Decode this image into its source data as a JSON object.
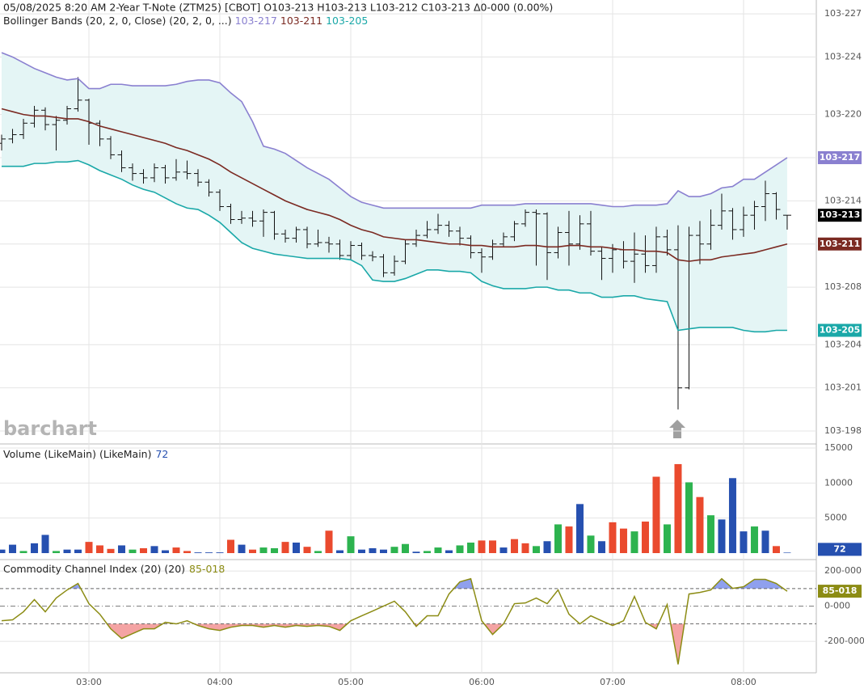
{
  "chart_data": [
    {
      "type": "ohlc",
      "title": "05/08/2025  8:20 AM 2-Year T-Note (ZTM25) [CBOT] O103-213 H103-213 L103-212 C103-213 Δ0-000 (0.00%)",
      "watermark": "barchart",
      "color": "#111111",
      "close_label": "103-213",
      "open": [
        218.0,
        218.3,
        218.6,
        219.4,
        220.3,
        219.3,
        219.6,
        220.4,
        221.0,
        219.4,
        218.3,
        217.2,
        216.3,
        215.9,
        215.6,
        216.3,
        215.6,
        216.0,
        215.9,
        215.3,
        214.6,
        213.6,
        212.7,
        212.8,
        212.6,
        213.2,
        211.7,
        211.4,
        212.0,
        211.0,
        211.1,
        211.0,
        210.2,
        210.9,
        210.2,
        210.1,
        209.0,
        209.8,
        211.0,
        211.6,
        212.0,
        212.3,
        211.9,
        211.4,
        210.4,
        210.1,
        211.0,
        211.5,
        212.4,
        213.2,
        213.1,
        210.4,
        211.8,
        211.0,
        212.4,
        210.5,
        210.0,
        210.6,
        209.8,
        210.3,
        209.5,
        211.5,
        210.6,
        201.0,
        211.6,
        211.0,
        212.3,
        213.3,
        212.0,
        213.0,
        213.6,
        214.5,
        213.0
      ],
      "high": [
        218.6,
        219.0,
        219.7,
        220.6,
        220.5,
        219.9,
        220.6,
        222.6,
        221.1,
        219.6,
        218.5,
        217.5,
        216.6,
        216.2,
        216.6,
        216.5,
        216.9,
        216.8,
        216.2,
        215.5,
        214.8,
        213.8,
        213.3,
        213.3,
        213.4,
        213.3,
        212.0,
        212.2,
        212.2,
        212.0,
        211.5,
        211.3,
        211.2,
        211.1,
        210.5,
        210.3,
        210.2,
        211.3,
        212.0,
        212.6,
        213.1,
        212.6,
        212.2,
        211.6,
        210.7,
        211.3,
        211.8,
        212.6,
        213.4,
        213.4,
        213.2,
        212.2,
        213.3,
        213.0,
        213.3,
        210.8,
        211.0,
        211.2,
        211.8,
        211.6,
        212.2,
        212.0,
        212.3,
        212.2,
        212.6,
        213.4,
        214.5,
        213.5,
        213.6,
        214.0,
        215.4,
        214.6,
        213.0
      ],
      "low": [
        217.5,
        218.0,
        218.3,
        219.1,
        218.9,
        217.5,
        219.3,
        220.2,
        217.9,
        217.8,
        216.9,
        216.0,
        215.4,
        215.2,
        215.3,
        215.2,
        215.4,
        215.5,
        215.0,
        214.3,
        213.3,
        212.4,
        212.4,
        212.2,
        211.5,
        211.3,
        211.1,
        211.1,
        210.7,
        210.8,
        210.4,
        209.9,
        209.9,
        209.9,
        209.8,
        208.7,
        208.8,
        209.6,
        210.8,
        211.4,
        211.7,
        211.5,
        210.9,
        210.0,
        209.0,
        209.9,
        210.8,
        211.2,
        212.2,
        209.5,
        208.5,
        210.0,
        209.5,
        210.6,
        210.2,
        208.5,
        209.0,
        209.3,
        208.3,
        209.0,
        209.0,
        210.2,
        199.5,
        200.9,
        209.6,
        210.6,
        212.0,
        211.3,
        211.5,
        212.0,
        212.6,
        212.7,
        212.0
      ],
      "close": [
        218.3,
        218.6,
        219.4,
        220.3,
        219.3,
        219.6,
        220.4,
        221.0,
        219.4,
        218.3,
        217.2,
        216.3,
        215.9,
        215.6,
        216.3,
        215.6,
        216.0,
        215.9,
        215.3,
        214.6,
        213.6,
        212.7,
        212.8,
        212.6,
        213.2,
        211.7,
        211.4,
        212.0,
        211.0,
        211.1,
        211.0,
        210.2,
        210.9,
        210.2,
        210.1,
        209.0,
        209.8,
        211.0,
        211.6,
        212.0,
        212.3,
        211.9,
        211.4,
        210.4,
        210.1,
        211.0,
        211.5,
        212.4,
        213.2,
        213.1,
        210.4,
        211.8,
        211.0,
        212.4,
        210.5,
        210.0,
        210.6,
        209.8,
        210.3,
        209.5,
        211.5,
        210.6,
        201.0,
        211.6,
        211.0,
        212.3,
        213.3,
        212.0,
        213.0,
        213.6,
        214.5,
        213.4,
        213.0
      ],
      "bands": {
        "label": "Bollinger Bands (20, 2, 0, Close)  (20, 2, 0, ...)",
        "fill": "#e4f5f5",
        "series": [
          {
            "name": "103-217",
            "color": "#8a80d0",
            "values": [
              224.3,
              224.0,
              223.6,
              223.2,
              222.9,
              222.6,
              222.4,
              222.5,
              221.8,
              221.8,
              222.1,
              222.1,
              222.0,
              222.0,
              222.0,
              222.0,
              222.1,
              222.3,
              222.4,
              222.4,
              222.2,
              221.5,
              220.9,
              219.5,
              217.8,
              217.6,
              217.3,
              216.8,
              216.3,
              215.9,
              215.5,
              214.9,
              214.3,
              213.9,
              213.7,
              213.5,
              213.5,
              213.5,
              213.5,
              213.5,
              213.5,
              213.5,
              213.5,
              213.5,
              213.7,
              213.7,
              213.7,
              213.7,
              213.8,
              213.8,
              213.8,
              213.8,
              213.8,
              213.8,
              213.8,
              213.7,
              213.6,
              213.6,
              213.7,
              213.7,
              213.7,
              213.8,
              214.7,
              214.3,
              214.3,
              214.5,
              214.9,
              215.0,
              215.5,
              215.5,
              216.0,
              216.5,
              217.0
            ]
          },
          {
            "name": "103-211",
            "color": "#7b2a22",
            "values": [
              220.4,
              220.2,
              220.0,
              219.9,
              219.9,
              219.8,
              219.7,
              219.7,
              219.5,
              219.2,
              219.0,
              218.8,
              218.6,
              218.4,
              218.2,
              218.0,
              217.7,
              217.5,
              217.2,
              216.9,
              216.5,
              216.0,
              215.6,
              215.2,
              214.8,
              214.4,
              214.0,
              213.7,
              213.4,
              213.2,
              213.0,
              212.7,
              212.3,
              212.0,
              211.8,
              211.5,
              211.4,
              211.3,
              211.3,
              211.2,
              211.1,
              211.0,
              211.0,
              210.9,
              210.9,
              210.8,
              210.8,
              210.8,
              210.9,
              210.9,
              210.8,
              210.8,
              210.9,
              210.9,
              210.8,
              210.8,
              210.7,
              210.6,
              210.6,
              210.5,
              210.5,
              210.4,
              209.9,
              209.8,
              209.9,
              209.9,
              210.1,
              210.2,
              210.3,
              210.4,
              210.6,
              210.8,
              211.0
            ]
          },
          {
            "name": "103-205",
            "color": "#1aa8a8",
            "values": [
              216.4,
              216.4,
              216.4,
              216.6,
              216.6,
              216.7,
              216.7,
              216.8,
              216.5,
              216.1,
              215.8,
              215.5,
              215.1,
              214.8,
              214.6,
              214.2,
              213.8,
              213.5,
              213.4,
              213.0,
              212.5,
              211.8,
              211.1,
              210.7,
              210.5,
              210.3,
              210.2,
              210.1,
              210.0,
              210.0,
              210.0,
              210.0,
              209.9,
              209.5,
              208.5,
              208.4,
              208.4,
              208.6,
              208.9,
              209.2,
              209.2,
              209.1,
              209.1,
              209.0,
              208.4,
              208.1,
              207.9,
              207.9,
              207.9,
              208.0,
              208.0,
              207.8,
              207.8,
              207.6,
              207.6,
              207.3,
              207.3,
              207.4,
              207.4,
              207.2,
              207.1,
              207.0,
              205.0,
              205.1,
              205.2,
              205.2,
              205.2,
              205.2,
              205.0,
              204.9,
              204.9,
              205.0,
              205.0
            ]
          }
        ]
      },
      "ylim": [
        197.16,
        227.96
      ],
      "yticks": [
        {
          "value": 227,
          "label": "103-227"
        },
        {
          "value": 224,
          "label": "103-224"
        },
        {
          "value": 220,
          "label": "103-220"
        },
        {
          "value": 217,
          "label": "103-217"
        },
        {
          "value": 214,
          "label": "103-214"
        },
        {
          "value": 211,
          "label": "103-211"
        },
        {
          "value": 208,
          "label": "103-208"
        },
        {
          "value": 204,
          "label": "103-204"
        },
        {
          "value": 201,
          "label": "103-201"
        },
        {
          "value": 198,
          "label": "103-198"
        }
      ],
      "grid": true
    },
    {
      "type": "bar",
      "title": "Volume (LikeMain)  (LikeMain)",
      "last_color": "#2650b0",
      "values": [
        500,
        1200,
        300,
        1400,
        2600,
        300,
        500,
        500,
        1600,
        1100,
        600,
        1100,
        500,
        700,
        1000,
        400,
        800,
        300,
        100,
        100,
        100,
        1900,
        1200,
        500,
        800,
        700,
        1600,
        1500,
        900,
        300,
        3200,
        400,
        2400,
        500,
        700,
        500,
        900,
        1300,
        200,
        300,
        800,
        400,
        1100,
        1500,
        1800,
        1800,
        800,
        2000,
        1400,
        1000,
        1700,
        4100,
        3800,
        7000,
        2500,
        1700,
        4400,
        3500,
        3100,
        4500,
        10900,
        4100,
        12700,
        10100,
        8000,
        5400,
        4800,
        10700,
        3100,
        3800,
        3200,
        1000,
        72
      ],
      "colors": [
        "#2650b0",
        "#2650b0",
        "#2db34f",
        "#2650b0",
        "#2650b0",
        "#2db34f",
        "#2650b0",
        "#2650b0",
        "#ea4a2e",
        "#ea4a2e",
        "#ea4a2e",
        "#2650b0",
        "#2db34f",
        "#ea4a2e",
        "#2650b0",
        "#2650b0",
        "#ea4a2e",
        "#ea4a2e",
        "#2650b0",
        "#2650b0",
        "#2650b0",
        "#ea4a2e",
        "#2650b0",
        "#ea4a2e",
        "#2db34f",
        "#2db34f",
        "#ea4a2e",
        "#2650b0",
        "#ea4a2e",
        "#2db34f",
        "#ea4a2e",
        "#2650b0",
        "#2db34f",
        "#2650b0",
        "#2650b0",
        "#2650b0",
        "#2db34f",
        "#2db34f",
        "#2650b0",
        "#2db34f",
        "#2db34f",
        "#2650b0",
        "#2db34f",
        "#2db34f",
        "#ea4a2e",
        "#ea4a2e",
        "#2650b0",
        "#ea4a2e",
        "#ea4a2e",
        "#2db34f",
        "#2650b0",
        "#2db34f",
        "#ea4a2e",
        "#2650b0",
        "#2db34f",
        "#2650b0",
        "#ea4a2e",
        "#ea4a2e",
        "#2db34f",
        "#ea4a2e",
        "#ea4a2e",
        "#2db34f",
        "#ea4a2e",
        "#2db34f",
        "#ea4a2e",
        "#2db34f",
        "#2650b0",
        "#2650b0",
        "#2650b0",
        "#2db34f",
        "#2650b0",
        "#ea4a2e",
        "#2650b0"
      ],
      "ylim": [
        -462,
        15462
      ],
      "yticks": [
        5000,
        10000,
        15000
      ],
      "grid": true
    },
    {
      "type": "line",
      "title": "Commodity Channel Index (20)  (20)",
      "last_label": "85-018",
      "color": "#8c8c14",
      "values": [
        -83,
        -78,
        -32,
        37,
        -32,
        46,
        92,
        129,
        14,
        -46,
        -129,
        -184,
        -156,
        -129,
        -129,
        -92,
        -101,
        -83,
        -110,
        -129,
        -138,
        -120,
        -110,
        -110,
        -120,
        -110,
        -120,
        -110,
        -115,
        -110,
        -115,
        -138,
        -83,
        -55,
        -28,
        0,
        28,
        -32,
        -115,
        -55,
        -55,
        69,
        138,
        156,
        -83,
        -161,
        -101,
        14,
        18,
        46,
        14,
        92,
        -46,
        -101,
        -55,
        -83,
        -110,
        -83,
        55,
        -92,
        -129,
        9,
        -331,
        69,
        78,
        92,
        156,
        101,
        110,
        152,
        152,
        129,
        85.018
      ],
      "levels": [
        100,
        -100
      ],
      "above_color": "#8fa0ee",
      "below_color": "#f4a3a3",
      "ylim": [
        -379,
        251
      ],
      "yticks": [
        {
          "value": 200,
          "label": "200-000"
        },
        {
          "value": 0,
          "label": "0-000"
        },
        {
          "value": -200,
          "label": "-200-000"
        }
      ],
      "xlim": [
        -0.15,
        74.67
      ],
      "xticks": [
        {
          "value": 8,
          "label": "03:00"
        },
        {
          "value": 20,
          "label": "04:00"
        },
        {
          "value": 32,
          "label": "05:00"
        },
        {
          "value": 44,
          "label": "06:00"
        },
        {
          "value": 56,
          "label": "07:00"
        },
        {
          "value": 68,
          "label": "08:00"
        }
      ],
      "grid": true
    }
  ]
}
